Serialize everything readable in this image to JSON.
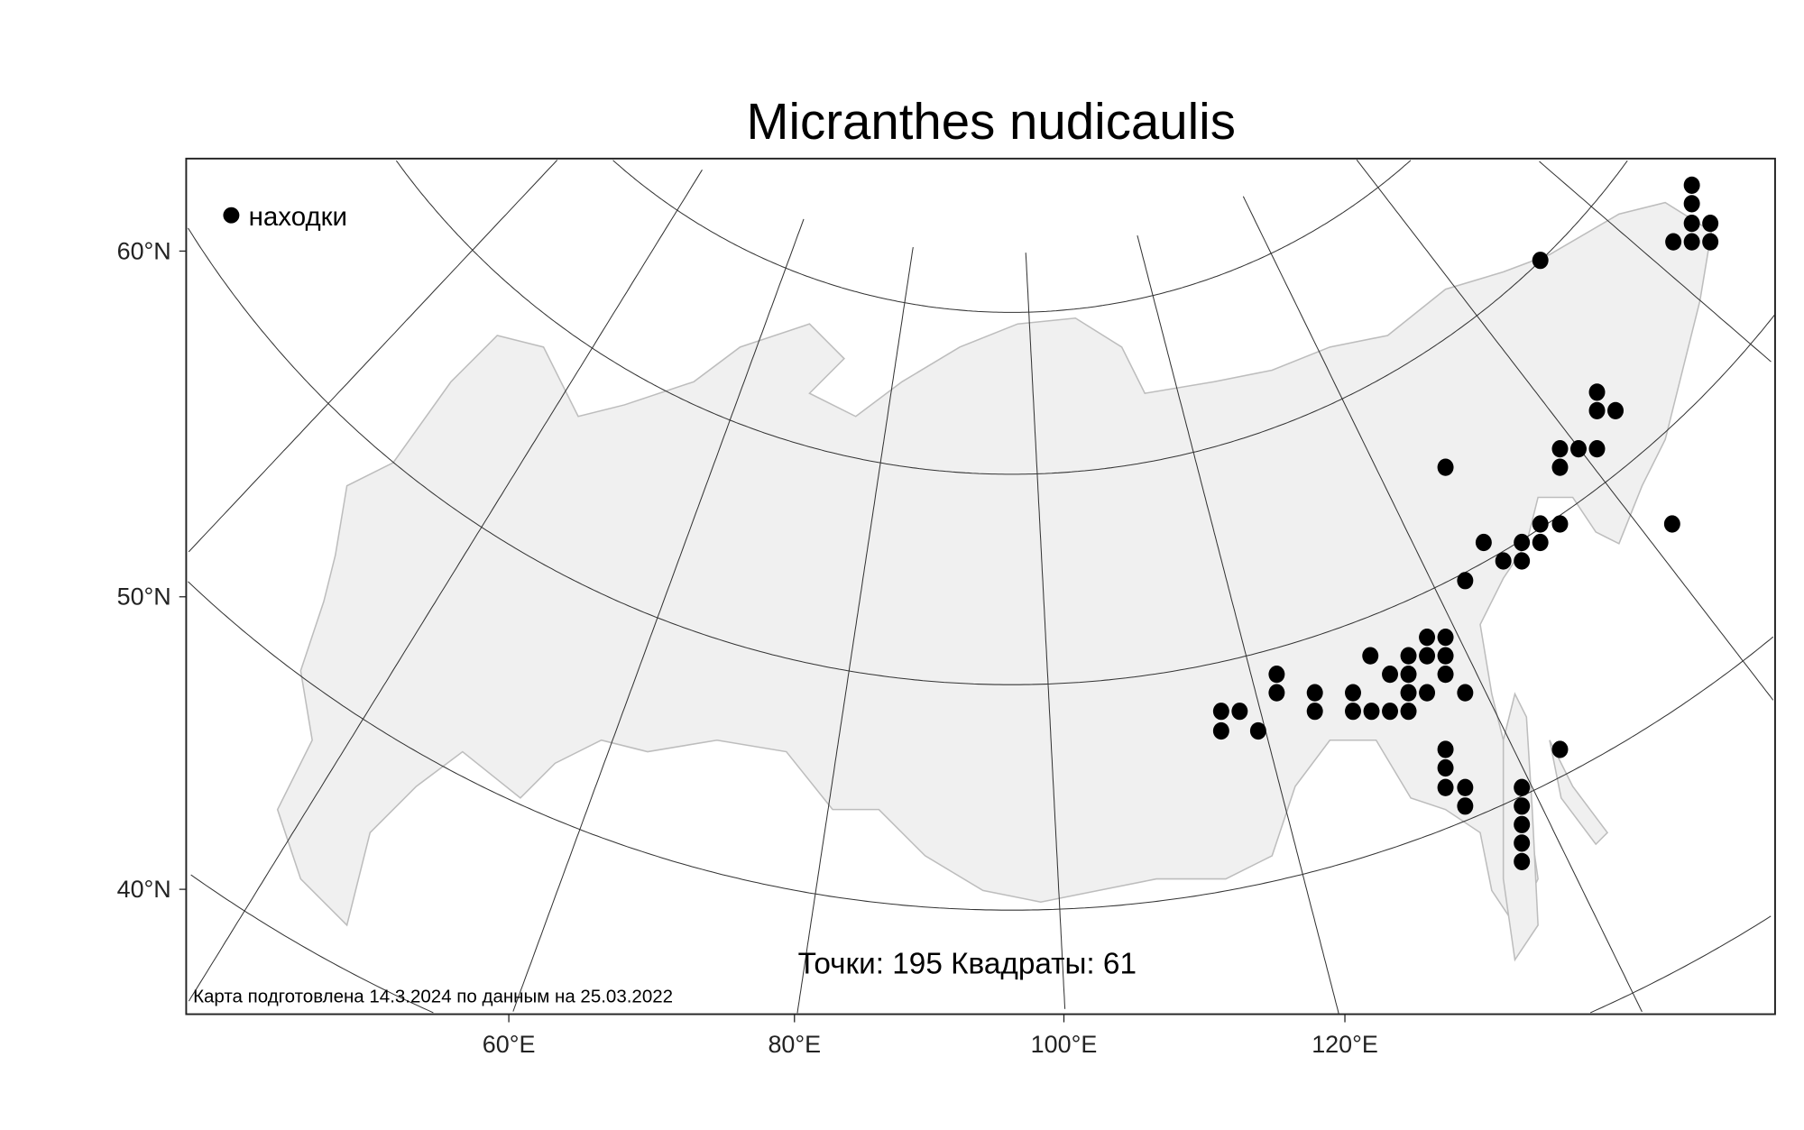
{
  "title": "Micranthes nudicaulis",
  "legend": {
    "label": "находки",
    "marker": "filled-circle",
    "marker_color": "#000000"
  },
  "stats": "Точки: 195 Квадраты: 61",
  "footnote": "Карта подготовлена 14.3.2024 по данным на 25.03.2022",
  "axes": {
    "lat_ticks": [
      "60°N",
      "50°N",
      "40°N"
    ],
    "lon_ticks": [
      "60°E",
      "80°E",
      "100°E",
      "120°E"
    ]
  },
  "colors": {
    "land": "#f0f0f0",
    "coast": "#bdbdbd",
    "points": "#000000",
    "graticule": "#333333"
  },
  "map_info": {
    "points_count": 195,
    "squares_count": 61
  }
}
